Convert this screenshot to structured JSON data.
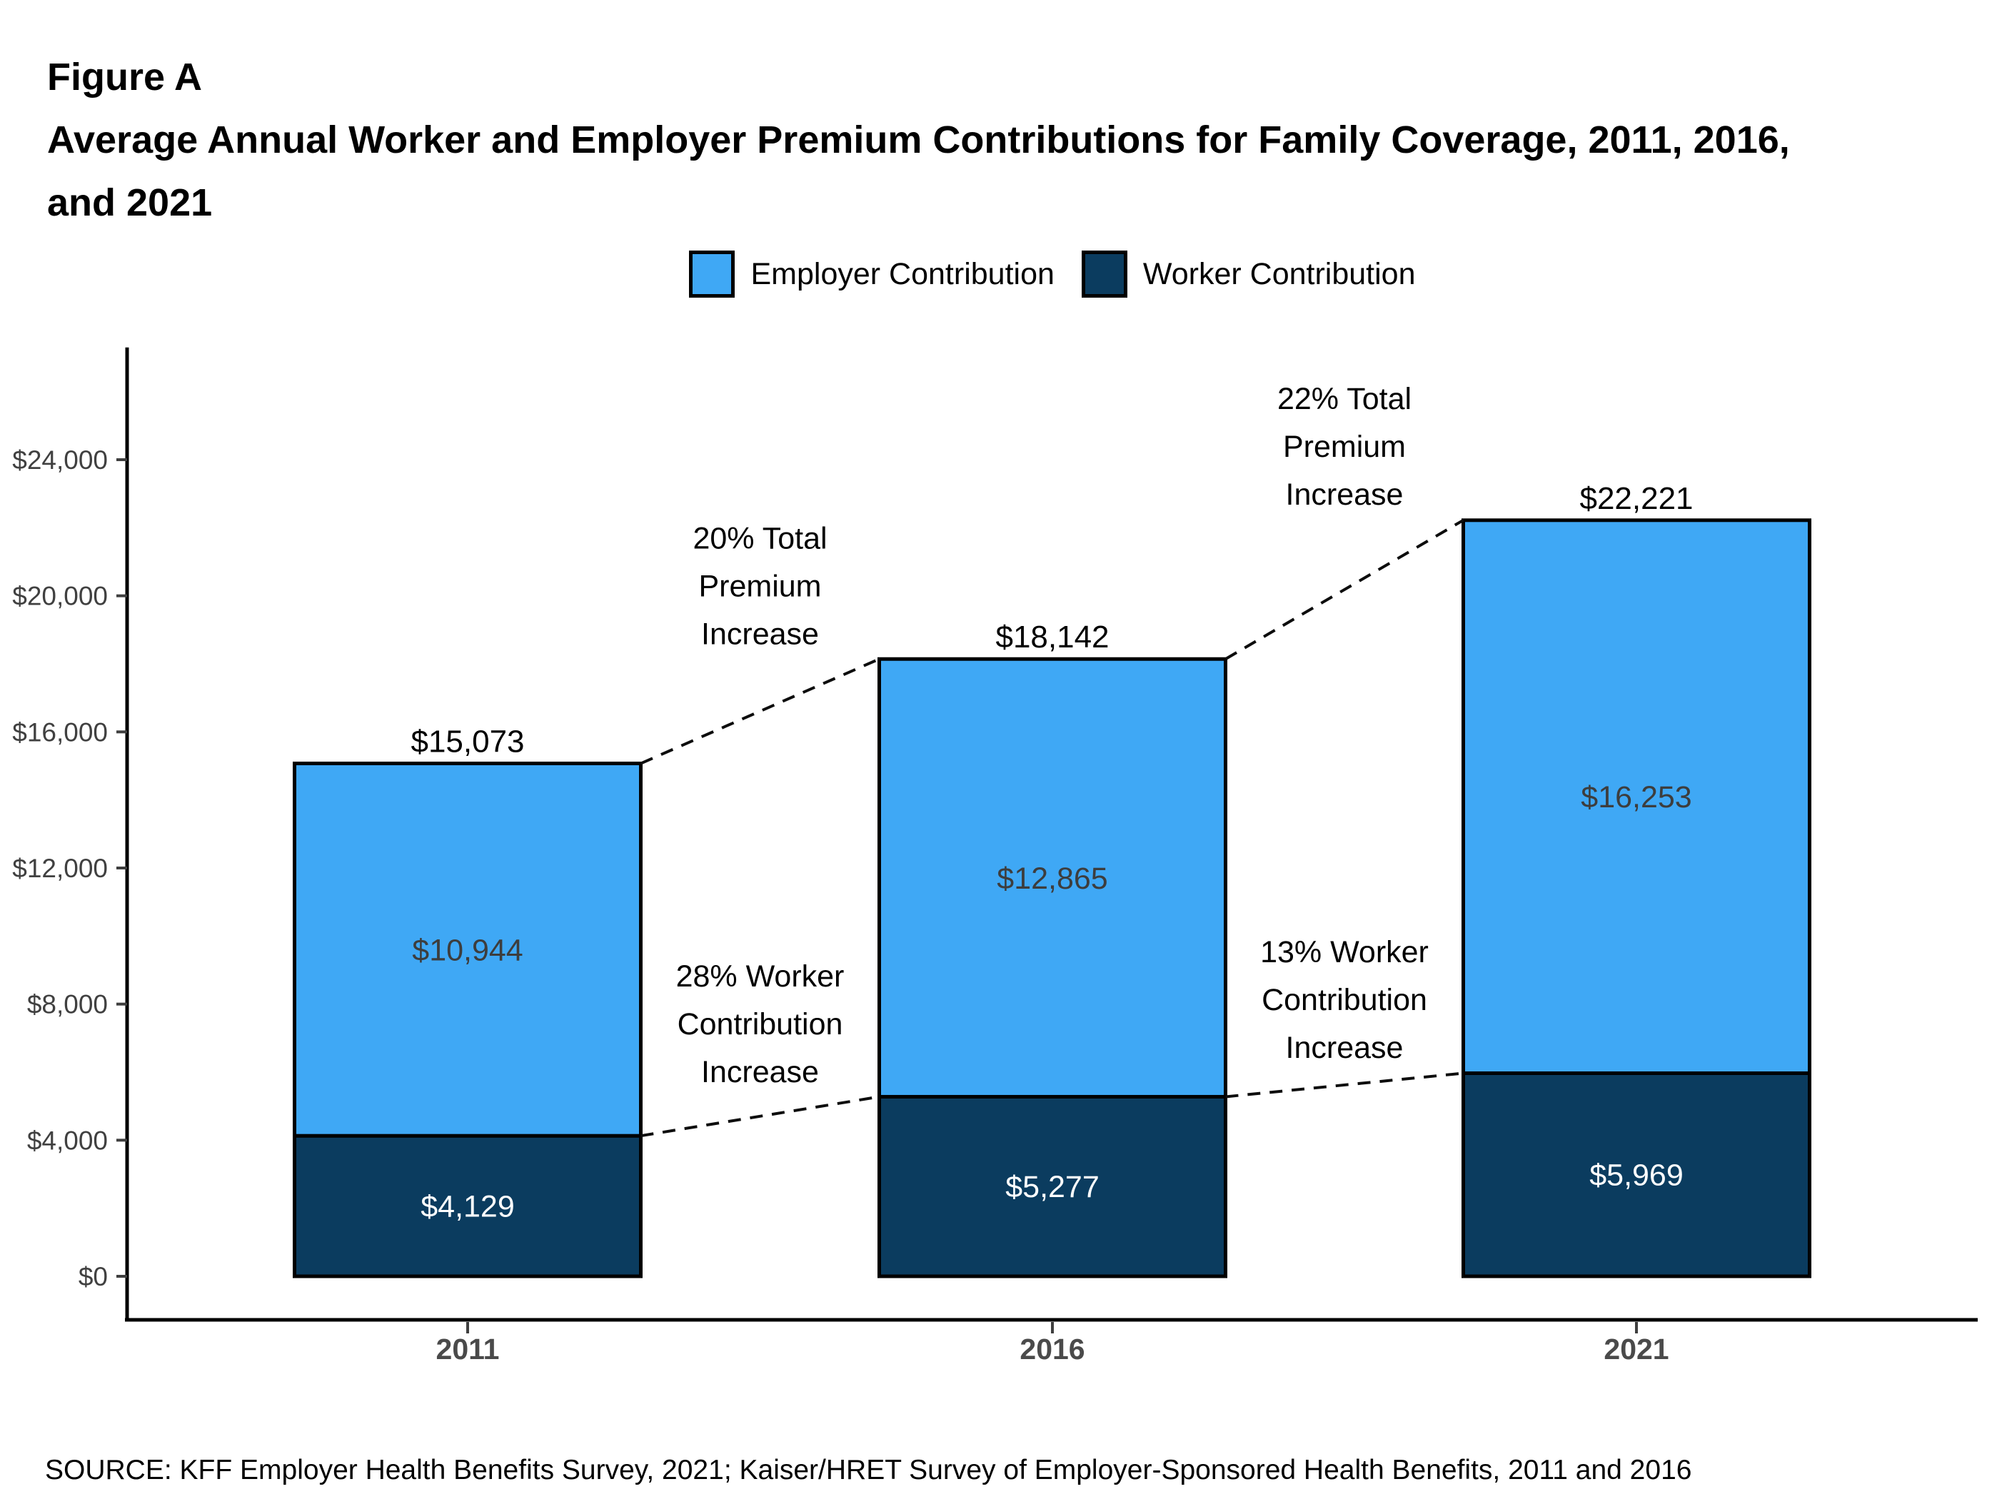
{
  "figure_label": "Figure A",
  "title": "Average Annual Worker and Employer Premium Contributions for Family Coverage, 2011, 2016, and 2021",
  "source": "SOURCE: KFF Employer Health Benefits Survey, 2021; Kaiser/HRET Survey of Employer-Sponsored Health Benefits, 2011 and 2016",
  "colors": {
    "employer": "#3FA8F5",
    "worker": "#0B3C5F",
    "axis": "#000000",
    "tick": "#3f3f3f",
    "ytick_text": "#404040",
    "xtick_text": "#4a4a4a",
    "employer_label_text": "#3d3d3d",
    "worker_label_text": "#ffffff",
    "connector": "#0d0d0d"
  },
  "legend": [
    {
      "label": "Employer Contribution",
      "color_key": "employer"
    },
    {
      "label": "Worker Contribution",
      "color_key": "worker"
    }
  ],
  "chart_data": {
    "type": "bar",
    "stacked": true,
    "title": "Average Annual Worker and Employer Premium Contributions for Family Coverage, 2011, 2016, and 2021",
    "xlabel": "",
    "ylabel": "",
    "grid": false,
    "legend_position": "top-center",
    "ylim": [
      0,
      27300
    ],
    "categories": [
      "2011",
      "2016",
      "2021"
    ],
    "series": [
      {
        "name": "Worker Contribution",
        "color_key": "worker",
        "values": [
          4129,
          5277,
          5969
        ],
        "labels": [
          "$4,129",
          "$5,277",
          "$5,969"
        ]
      },
      {
        "name": "Employer Contribution",
        "color_key": "employer",
        "values": [
          10944,
          12865,
          16253
        ],
        "labels": [
          "$10,944",
          "$12,865",
          "$16,253"
        ]
      }
    ],
    "totals": [
      15073,
      18142,
      22221
    ],
    "total_labels": [
      "$15,073",
      "$18,142",
      "$22,221"
    ],
    "y_ticks": [
      {
        "value": 0,
        "label": "$0"
      },
      {
        "value": 4000,
        "label": "$4,000"
      },
      {
        "value": 8000,
        "label": "$8,000"
      },
      {
        "value": 12000,
        "label": "$12,000"
      },
      {
        "value": 16000,
        "label": "$16,000"
      },
      {
        "value": 20000,
        "label": "$20,000"
      },
      {
        "value": 24000,
        "label": "$24,000"
      }
    ],
    "connectors": [
      {
        "from": "2011",
        "to": "2016",
        "metric": "total"
      },
      {
        "from": "2016",
        "to": "2021",
        "metric": "total"
      },
      {
        "from": "2011",
        "to": "2016",
        "metric": "worker"
      },
      {
        "from": "2016",
        "to": "2021",
        "metric": "worker"
      }
    ],
    "annotations": [
      {
        "lines": [
          "20% Total",
          "Premium",
          "Increase"
        ],
        "between": [
          "2011",
          "2016"
        ],
        "metric": "total",
        "anchor_value": 20300
      },
      {
        "lines": [
          "22% Total",
          "Premium",
          "Increase"
        ],
        "between": [
          "2016",
          "2021"
        ],
        "metric": "total",
        "anchor_value": 24400
      },
      {
        "lines": [
          "28% Worker",
          "Contribution",
          "Increase"
        ],
        "between": [
          "2011",
          "2016"
        ],
        "metric": "worker",
        "anchor_value": 7430
      },
      {
        "lines": [
          "13% Worker",
          "Contribution",
          "Increase"
        ],
        "between": [
          "2016",
          "2021"
        ],
        "metric": "worker",
        "anchor_value": 8140
      }
    ]
  }
}
